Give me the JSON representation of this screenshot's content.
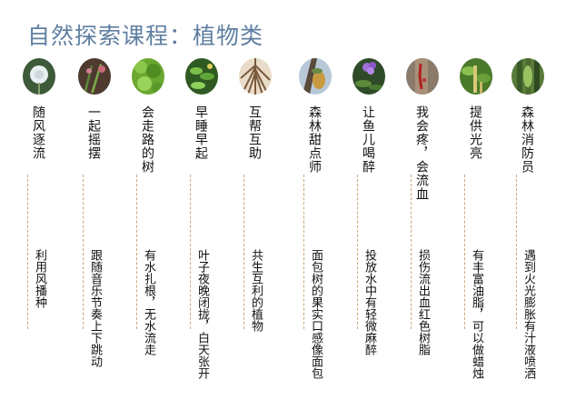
{
  "page": {
    "title": "自然探索课程：植物类"
  },
  "colors": {
    "title": "#5f7fa1",
    "divider": "#c8a87a",
    "text": "#111111"
  },
  "items": [
    {
      "name": "随风逐流",
      "desc": "利用风播种",
      "icon": "dandelion-photo-icon"
    },
    {
      "name": "一起摇摆",
      "desc": "跟随音乐节奏上下跳动",
      "icon": "dancing-plant-photo-icon"
    },
    {
      "name": "会走路的树",
      "desc": "有水扎根，无水流走",
      "icon": "walking-tree-photo-icon"
    },
    {
      "name": "早睡早起",
      "desc": "叶子夜晚闭拢，白天张开",
      "icon": "sleeping-plant-photo-icon"
    },
    {
      "name": "互帮互助",
      "desc": "共生互利的植物",
      "icon": "roots-photo-icon"
    },
    {
      "name": "森林甜点师",
      "desc": "面包树的果实口感像面包",
      "icon": "breadfruit-photo-icon"
    },
    {
      "name": "让鱼儿喝醉",
      "desc": "投放水中有轻微麻醉",
      "icon": "purple-flower-photo-icon"
    },
    {
      "name": "我会疼，会流血",
      "desc": "损伤流出血红色树脂",
      "icon": "bleeding-tree-photo-icon"
    },
    {
      "name": "提供光亮",
      "desc": "有丰富油脂，可以做蜡烛",
      "icon": "candle-tree-photo-icon"
    },
    {
      "name": "森林消防员",
      "desc": "遇到火光膨胀有汁液喷洒",
      "icon": "firefighter-tree-photo-icon"
    }
  ]
}
